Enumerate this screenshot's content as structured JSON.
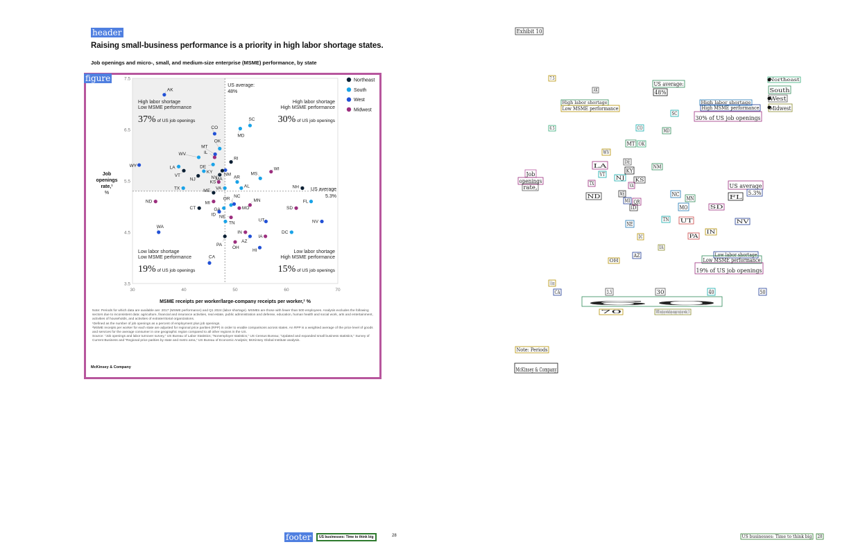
{
  "header_tag": "header",
  "figure_tag": "figure",
  "footer_tag": "footer",
  "headline": "Raising small-business performance is a priority in high labor shortage states.",
  "subtitle": "Job openings and micro-, small, and medium-size enterprise (MSME) performance, by state",
  "exhibit_label": "Exhibit 10",
  "chart_data": {
    "type": "scatter",
    "xlabel": "MSME receipts per worker/large-company receipts per worker,² %",
    "ylabel": [
      "Job",
      "openings",
      "rate,¹",
      "%"
    ],
    "xlim": [
      30,
      70
    ],
    "ylim": [
      3.5,
      7.5
    ],
    "x_ticks": [
      "30",
      "40",
      "50",
      "60",
      "70"
    ],
    "y_ticks": [
      "3.5",
      "4.5",
      "5.5",
      "6.5",
      "7.5"
    ],
    "grid": false,
    "legend_position": "top-right",
    "legend": [
      {
        "name": "Northeast",
        "color": "#0a1f33"
      },
      {
        "name": "South",
        "color": "#1aa3e8"
      },
      {
        "name": "West",
        "color": "#2251d6"
      },
      {
        "name": "Midwest",
        "color": "#9c2e7e"
      }
    ],
    "references": {
      "x_average": {
        "label": [
          "US average:",
          "48%"
        ],
        "value": 48
      },
      "y_average": {
        "label": [
          "US average",
          "5.3%"
        ],
        "value": 5.3
      }
    },
    "quadrants": [
      {
        "lines": [
          "High labor shortage",
          "Low MSME performance"
        ],
        "share": "37%",
        "suffix": "of US job openings",
        "position": "top-left"
      },
      {
        "lines": [
          "High labor shortage",
          "High MSME performance"
        ],
        "share": "30%",
        "suffix": "of US job openings",
        "position": "top-right"
      },
      {
        "lines": [
          "Low labor shortage",
          "Low MSME performance"
        ],
        "share": "19%",
        "suffix": "of US job openings",
        "position": "bottom-left"
      },
      {
        "lines": [
          "Low labor shortage",
          "High MSME performance"
        ],
        "share": "15%",
        "suffix": "of US job openings",
        "position": "bottom-right"
      }
    ],
    "points": [
      {
        "label": "AK",
        "region": "West",
        "x": 36.2,
        "y": 7.18
      },
      {
        "label": "SC",
        "region": "South",
        "x": 52.9,
        "y": 6.58
      },
      {
        "label": "MD",
        "region": "South",
        "x": 51.0,
        "y": 6.52
      },
      {
        "label": "CO",
        "region": "West",
        "x": 46.0,
        "y": 6.42
      },
      {
        "label": "MT",
        "region": "West",
        "x": 46.1,
        "y": 6.02
      },
      {
        "label": "OK",
        "region": "South",
        "x": 47.0,
        "y": 6.13
      },
      {
        "label": "WV",
        "region": "South",
        "x": 42.9,
        "y": 5.96
      },
      {
        "label": "IL",
        "region": "Midwest",
        "x": 46.0,
        "y": 5.96
      },
      {
        "label": "RI",
        "region": "Northeast",
        "x": 49.2,
        "y": 5.87
      },
      {
        "label": "WY",
        "region": "West",
        "x": 31.3,
        "y": 5.81
      },
      {
        "label": "DE",
        "region": "South",
        "x": 45.7,
        "y": 5.82
      },
      {
        "label": "LA",
        "region": "South",
        "x": 39.0,
        "y": 5.78
      },
      {
        "label": "KY",
        "region": "South",
        "x": 43.9,
        "y": 5.69
      },
      {
        "label": "NM",
        "region": "West",
        "x": 48.1,
        "y": 5.71
      },
      {
        "label": "VT",
        "region": "Northeast",
        "x": 40.0,
        "y": 5.7
      },
      {
        "label": "MS",
        "region": "South",
        "x": 54.9,
        "y": 5.55
      },
      {
        "label": "WI",
        "region": "Midwest",
        "x": 57.0,
        "y": 5.68
      },
      {
        "label": "NJ",
        "region": "Northeast",
        "x": 42.8,
        "y": 5.6
      },
      {
        "label": "MA",
        "region": "Northeast",
        "x": 47.0,
        "y": 5.62
      },
      {
        "label": "AR",
        "region": "South",
        "x": 50.4,
        "y": 5.48
      },
      {
        "label": "KS",
        "region": "Midwest",
        "x": 46.8,
        "y": 5.48
      },
      {
        "label": "NY",
        "region": "Northeast",
        "x": 47.5,
        "y": 5.7
      },
      {
        "label": "AL",
        "region": "South",
        "x": 51.2,
        "y": 5.36
      },
      {
        "label": "TX",
        "region": "South",
        "x": 39.9,
        "y": 5.36
      },
      {
        "label": "VA",
        "region": "South",
        "x": 48.0,
        "y": 5.36
      },
      {
        "label": "NH",
        "region": "Northeast",
        "x": 63.1,
        "y": 5.36
      },
      {
        "label": "ND",
        "region": "Midwest",
        "x": 34.5,
        "y": 5.1
      },
      {
        "label": "ME",
        "region": "Northeast",
        "x": 45.8,
        "y": 5.27
      },
      {
        "label": "NC",
        "region": "South",
        "x": 49.2,
        "y": 5.03
      },
      {
        "label": "FL",
        "region": "South",
        "x": 64.8,
        "y": 5.1
      },
      {
        "label": "MI",
        "region": "Midwest",
        "x": 45.8,
        "y": 5.1
      },
      {
        "label": "MN",
        "region": "Midwest",
        "x": 52.9,
        "y": 5.03
      },
      {
        "label": "OR",
        "region": "West",
        "x": 49.8,
        "y": 5.05
      },
      {
        "label": "CT",
        "region": "Northeast",
        "x": 43.0,
        "y": 4.97
      },
      {
        "label": "GA",
        "region": "South",
        "x": 47.8,
        "y": 4.97
      },
      {
        "label": "MO",
        "region": "Midwest",
        "x": 50.8,
        "y": 4.97
      },
      {
        "label": "SD",
        "region": "Midwest",
        "x": 61.9,
        "y": 4.97
      },
      {
        "label": "ID",
        "region": "West",
        "x": 46.9,
        "y": 4.9
      },
      {
        "label": "WA",
        "region": "West",
        "x": 35.1,
        "y": 4.5
      },
      {
        "label": "NE",
        "region": "Midwest",
        "x": 49.2,
        "y": 4.79
      },
      {
        "label": "TN",
        "region": "South",
        "x": 48.1,
        "y": 4.71
      },
      {
        "label": "UT",
        "region": "West",
        "x": 56.0,
        "y": 4.71
      },
      {
        "label": "NV",
        "region": "West",
        "x": 66.9,
        "y": 4.71
      },
      {
        "label": "DC",
        "region": "South",
        "x": 61.0,
        "y": 4.5
      },
      {
        "label": "IN",
        "region": "Midwest",
        "x": 52.0,
        "y": 4.5
      },
      {
        "label": "PA",
        "region": "Northeast",
        "x": 48.0,
        "y": 4.42
      },
      {
        "label": "AZ",
        "region": "West",
        "x": 52.9,
        "y": 4.42
      },
      {
        "label": "IA",
        "region": "Midwest",
        "x": 55.9,
        "y": 4.42
      },
      {
        "label": "OH",
        "region": "Midwest",
        "x": 50.0,
        "y": 4.31
      },
      {
        "label": "HI",
        "region": "West",
        "x": 54.8,
        "y": 4.2
      },
      {
        "label": "CA",
        "region": "West",
        "x": 45.0,
        "y": 3.9
      }
    ]
  },
  "notes": [
    "Note: Periods for which data are available are: 2017 (MSME performance) and Q1 2024 (labor shortage). MSMEs are those with fewer than 500 employees. Analysis excludes the following sectors due to inconsistent data: agriculture, financial and insurance activities, real estate, public administration and defense, education, human health and social work, arts and entertainment, activities of households, and activities of extraterritorial organizations.",
    "¹Defined as the number of job openings as a percent of employment plus job openings.",
    "²MSME receipts per worker for each state are adjusted for regional price parities (RPP) in order to enable comparisons across states. An RPP is a weighted average of the price level of goods and services for the average consumer in one geographic region compared to all other regions in the US.",
    "Source: “Job openings and labor turnover survey,” US Bureau of Labor Statistics; “Nonemployer statistics,” US Census Bureau; “Updated and expanded small business statistics,” Survey of Current Business and “Regional price parities by state and metro area,” US Bureau of Economic Analysis; McKinsey Global Institute analysis."
  ],
  "brand": "McKinsey & Company",
  "footer_title": "US businesses: Time to think big",
  "page_number": "28",
  "layout_view": {
    "labels": [
      "Exhibit 10",
      "7.5",
      "AK",
      "US average:",
      "48%",
      "Northeast",
      "South",
      "West",
      "Midwest",
      "High labor shortage",
      "Low MSME performance",
      "High labor shortage",
      "High MSME performance",
      "30% of US job openings",
      "SC",
      "6.5",
      "CO",
      "MD",
      "MT",
      "OK",
      "WV",
      "DE",
      "LA",
      "NM",
      "KY",
      "VT",
      "NJ",
      "KS",
      "Job",
      "openings",
      "rate,",
      "TX",
      "VA",
      "US average",
      "5.3%",
      "ND",
      "ME",
      "NC",
      "MN",
      "FL",
      "MI",
      "OR",
      "MO",
      "SD",
      "ID",
      "TN",
      "UT",
      "NV",
      "NE",
      "IN",
      "PA",
      "DC",
      "IA",
      "AZ",
      "OH",
      "Low labor shortage",
      "Low MSME performance",
      "19% of US job openings",
      "15% of US job openings",
      "CA",
      "3.5",
      "30",
      "40",
      "50",
      "60",
      "70",
      "MSME receipts per worker/large-company receipts per worker, 2 %",
      "Note: Periods",
      "McKinsey & Company",
      "US businesses: Time to think big",
      "28"
    ]
  }
}
